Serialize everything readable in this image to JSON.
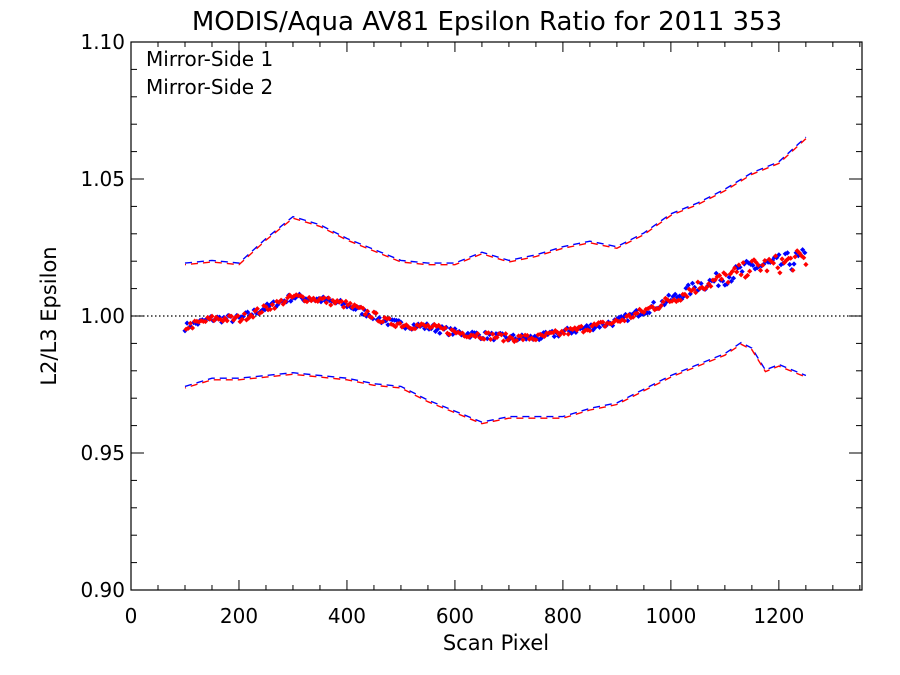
{
  "chart_data": {
    "type": "scatter",
    "title": "MODIS/Aqua AV81 Epsilon Ratio for 2011 353",
    "xlabel": "Scan Pixel",
    "ylabel": "L2/L3 Epsilon",
    "xlim": [
      0,
      1354
    ],
    "ylim": [
      0.9,
      1.1
    ],
    "xticks": [
      0,
      200,
      400,
      600,
      800,
      1000,
      1200
    ],
    "xtick_labels": [
      "0",
      "200",
      "400",
      "600",
      "800",
      "1000",
      "1200"
    ],
    "yticks": [
      0.9,
      0.95,
      1.0,
      1.05,
      1.1
    ],
    "ytick_labels": [
      "0.90",
      "0.95",
      "1.00",
      "1.05",
      "1.10"
    ],
    "reference_line": {
      "y": 1.0,
      "style": "dotted"
    },
    "legend_position": "top-left",
    "colors": {
      "mirror_side_1": "#0000ff",
      "mirror_side_2": "#ff0000",
      "axes": "#000000"
    },
    "series": [
      {
        "name": "Mirror-Side 1",
        "color": "#0000ff",
        "mean_points": [
          [
            100,
            0.996
          ],
          [
            150,
            0.999
          ],
          [
            200,
            0.999
          ],
          [
            250,
            1.003
          ],
          [
            300,
            1.007
          ],
          [
            350,
            1.006
          ],
          [
            400,
            1.004
          ],
          [
            450,
            1.0
          ],
          [
            470,
            0.998
          ],
          [
            500,
            0.997
          ],
          [
            550,
            0.996
          ],
          [
            600,
            0.994
          ],
          [
            650,
            0.993
          ],
          [
            700,
            0.992
          ],
          [
            750,
            0.992
          ],
          [
            800,
            0.994
          ],
          [
            850,
            0.996
          ],
          [
            900,
            0.998
          ],
          [
            950,
            1.002
          ],
          [
            1000,
            1.006
          ],
          [
            1050,
            1.011
          ],
          [
            1100,
            1.014
          ],
          [
            1150,
            1.018
          ],
          [
            1200,
            1.019
          ],
          [
            1250,
            1.021
          ]
        ],
        "upper_bound": [
          [
            100,
            1.019
          ],
          [
            150,
            1.02
          ],
          [
            200,
            1.019
          ],
          [
            250,
            1.028
          ],
          [
            300,
            1.036
          ],
          [
            350,
            1.033
          ],
          [
            400,
            1.028
          ],
          [
            450,
            1.024
          ],
          [
            500,
            1.02
          ],
          [
            550,
            1.019
          ],
          [
            600,
            1.019
          ],
          [
            650,
            1.023
          ],
          [
            700,
            1.02
          ],
          [
            750,
            1.022
          ],
          [
            800,
            1.025
          ],
          [
            850,
            1.027
          ],
          [
            900,
            1.025
          ],
          [
            950,
            1.03
          ],
          [
            1000,
            1.037
          ],
          [
            1050,
            1.041
          ],
          [
            1100,
            1.046
          ],
          [
            1150,
            1.052
          ],
          [
            1200,
            1.056
          ],
          [
            1250,
            1.065
          ]
        ],
        "lower_bound": [
          [
            100,
            0.974
          ],
          [
            150,
            0.977
          ],
          [
            200,
            0.977
          ],
          [
            250,
            0.978
          ],
          [
            300,
            0.979
          ],
          [
            350,
            0.978
          ],
          [
            400,
            0.977
          ],
          [
            450,
            0.975
          ],
          [
            500,
            0.974
          ],
          [
            550,
            0.969
          ],
          [
            600,
            0.965
          ],
          [
            650,
            0.961
          ],
          [
            700,
            0.963
          ],
          [
            750,
            0.963
          ],
          [
            800,
            0.963
          ],
          [
            850,
            0.966
          ],
          [
            900,
            0.968
          ],
          [
            950,
            0.973
          ],
          [
            1000,
            0.978
          ],
          [
            1050,
            0.982
          ],
          [
            1100,
            0.986
          ],
          [
            1130,
            0.99
          ],
          [
            1150,
            0.988
          ],
          [
            1175,
            0.98
          ],
          [
            1200,
            0.982
          ],
          [
            1250,
            0.978
          ]
        ]
      },
      {
        "name": "Mirror-Side 2",
        "color": "#ff0000",
        "mean_points": [
          [
            100,
            0.996
          ],
          [
            150,
            0.999
          ],
          [
            200,
            0.999
          ],
          [
            250,
            1.003
          ],
          [
            300,
            1.007
          ],
          [
            350,
            1.006
          ],
          [
            400,
            1.004
          ],
          [
            450,
            1.0
          ],
          [
            470,
            0.998
          ],
          [
            500,
            0.997
          ],
          [
            550,
            0.996
          ],
          [
            600,
            0.994
          ],
          [
            650,
            0.993
          ],
          [
            700,
            0.992
          ],
          [
            750,
            0.992
          ],
          [
            800,
            0.994
          ],
          [
            850,
            0.996
          ],
          [
            900,
            0.998
          ],
          [
            950,
            1.002
          ],
          [
            1000,
            1.006
          ],
          [
            1050,
            1.011
          ],
          [
            1100,
            1.014
          ],
          [
            1150,
            1.018
          ],
          [
            1200,
            1.019
          ],
          [
            1250,
            1.021
          ]
        ],
        "upper_bound": [
          [
            100,
            1.019
          ],
          [
            150,
            1.02
          ],
          [
            200,
            1.019
          ],
          [
            250,
            1.028
          ],
          [
            300,
            1.036
          ],
          [
            350,
            1.033
          ],
          [
            400,
            1.028
          ],
          [
            450,
            1.024
          ],
          [
            500,
            1.02
          ],
          [
            550,
            1.019
          ],
          [
            600,
            1.019
          ],
          [
            650,
            1.023
          ],
          [
            700,
            1.02
          ],
          [
            750,
            1.022
          ],
          [
            800,
            1.025
          ],
          [
            850,
            1.027
          ],
          [
            900,
            1.025
          ],
          [
            950,
            1.03
          ],
          [
            1000,
            1.037
          ],
          [
            1050,
            1.041
          ],
          [
            1100,
            1.046
          ],
          [
            1150,
            1.052
          ],
          [
            1200,
            1.056
          ],
          [
            1250,
            1.065
          ]
        ],
        "lower_bound": [
          [
            100,
            0.974
          ],
          [
            150,
            0.977
          ],
          [
            200,
            0.977
          ],
          [
            250,
            0.978
          ],
          [
            300,
            0.979
          ],
          [
            350,
            0.978
          ],
          [
            400,
            0.977
          ],
          [
            450,
            0.975
          ],
          [
            500,
            0.974
          ],
          [
            550,
            0.969
          ],
          [
            600,
            0.965
          ],
          [
            650,
            0.961
          ],
          [
            700,
            0.963
          ],
          [
            750,
            0.963
          ],
          [
            800,
            0.963
          ],
          [
            850,
            0.966
          ],
          [
            900,
            0.968
          ],
          [
            950,
            0.973
          ],
          [
            1000,
            0.978
          ],
          [
            1050,
            0.982
          ],
          [
            1100,
            0.986
          ],
          [
            1130,
            0.99
          ],
          [
            1150,
            0.988
          ],
          [
            1175,
            0.98
          ],
          [
            1200,
            0.982
          ],
          [
            1250,
            0.978
          ]
        ]
      }
    ]
  }
}
